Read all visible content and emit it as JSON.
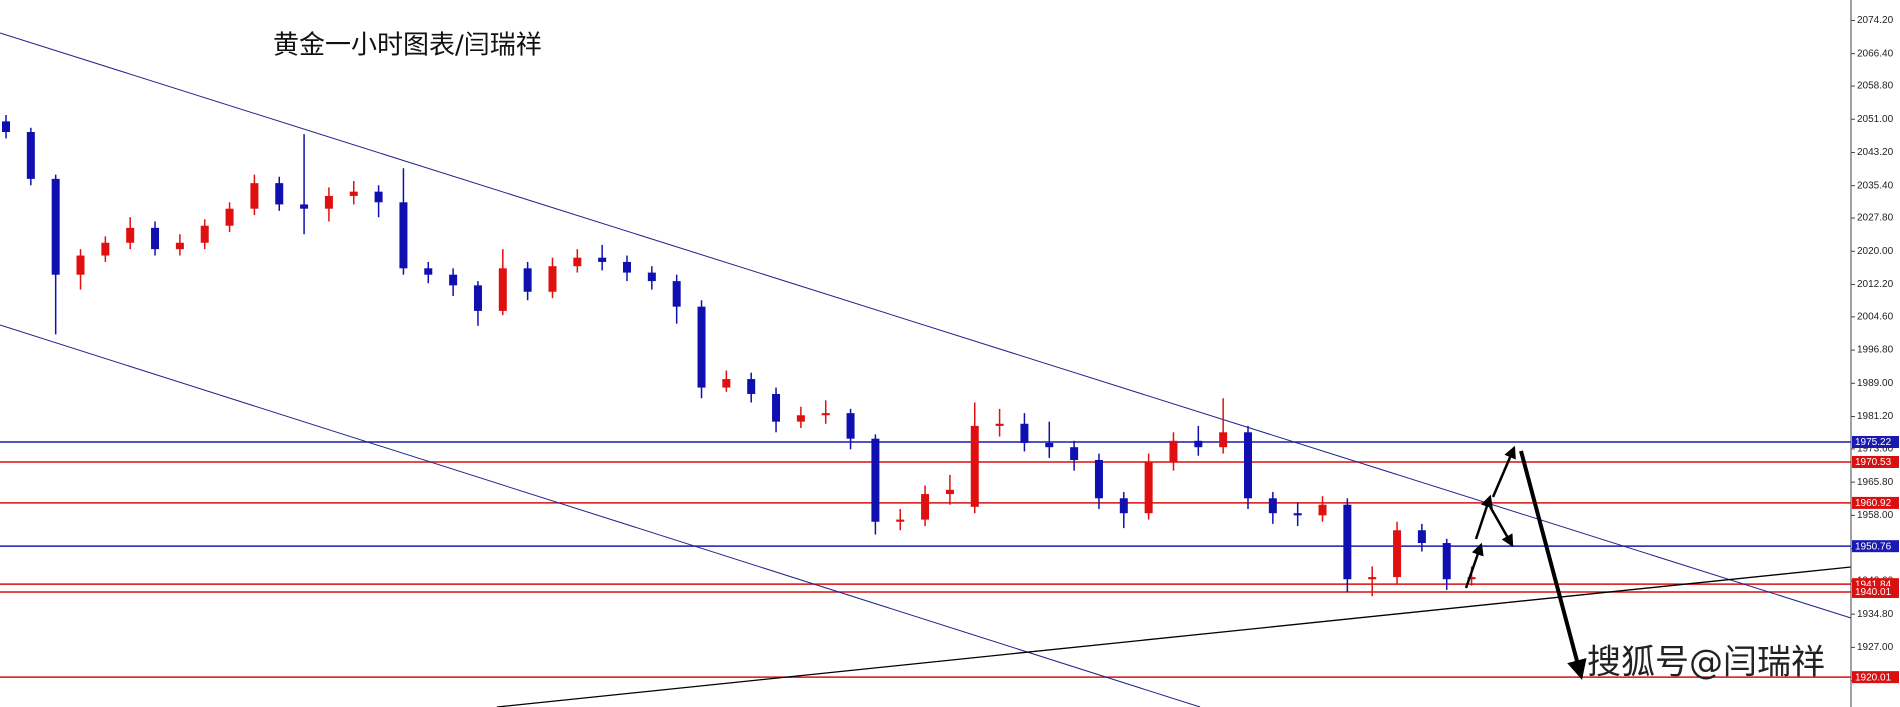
{
  "chart_data": {
    "type": "candlestick",
    "title": "黄金一小时图表/闫瑞祥",
    "watermark": "搜狐号@闫瑞祥",
    "up_color": "#e01010",
    "down_color": "#1010b0",
    "open": [
      2050.5,
      2048.0,
      2037.0,
      2014.5,
      2019.0,
      2022.0,
      2025.5,
      2020.5,
      2022.0,
      2026.0,
      2030.0,
      2036.0,
      2031.0,
      2030.0,
      2033.0,
      2034.0,
      2031.5,
      2016.0,
      2014.5,
      2012.0,
      2006.0,
      2016.0,
      2010.5,
      2016.5,
      2018.5,
      2017.5,
      2015.0,
      2013.0,
      2007.0,
      1988.0,
      1990.0,
      1986.5,
      1980.0,
      1981.5,
      1982.0,
      1976.0,
      1956.5,
      1957.0,
      1963.0,
      1960.0,
      1979.0,
      1979.5,
      1975.0,
      1974.0,
      1971.0,
      1962.0,
      1958.5,
      1970.5,
      1975.5,
      1974.0,
      1977.5,
      1962.0,
      1958.5,
      1958.0,
      1960.5,
      1943.0,
      1943.5,
      1954.5,
      1951.5,
      1943.0
    ],
    "high": [
      2052.0,
      2049.0,
      2038.0,
      2020.5,
      2023.5,
      2028.0,
      2027.0,
      2024.0,
      2027.5,
      2031.5,
      2038.0,
      2037.5,
      2047.5,
      2035.0,
      2036.5,
      2035.5,
      2039.5,
      2017.5,
      2016.0,
      2013.0,
      2020.5,
      2017.5,
      2018.5,
      2020.5,
      2021.5,
      2019.0,
      2016.5,
      2014.5,
      2008.5,
      1992.0,
      1991.5,
      1988.0,
      1983.5,
      1985.0,
      1983.0,
      1977.0,
      1959.5,
      1965.0,
      1967.5,
      1984.5,
      1983.0,
      1982.0,
      1980.0,
      1975.5,
      1972.5,
      1963.5,
      1972.5,
      1977.5,
      1979.0,
      1985.5,
      1979.0,
      1963.5,
      1961.0,
      1962.5,
      1962.0,
      1946.0,
      1956.5,
      1956.0,
      1952.5,
      1946.0
    ],
    "low": [
      2046.5,
      2035.5,
      2000.5,
      2011.0,
      2017.5,
      2020.5,
      2019.0,
      2019.0,
      2020.5,
      2024.5,
      2028.5,
      2029.5,
      2024.0,
      2027.0,
      2031.0,
      2028.0,
      2014.5,
      2012.5,
      2009.5,
      2002.5,
      2005.0,
      2008.5,
      2009.0,
      2015.0,
      2015.5,
      2013.0,
      2011.0,
      2003.0,
      1985.5,
      1987.0,
      1984.5,
      1977.5,
      1978.5,
      1979.5,
      1973.5,
      1953.5,
      1954.5,
      1955.5,
      1960.5,
      1958.5,
      1976.5,
      1973.0,
      1971.5,
      1968.5,
      1959.5,
      1955.0,
      1957.0,
      1968.5,
      1972.0,
      1972.5,
      1959.5,
      1956.0,
      1955.5,
      1956.5,
      1940.0,
      1939.0,
      1942.0,
      1949.5,
      1940.5,
      1941.5
    ],
    "close": [
      2048.0,
      2037.0,
      2014.5,
      2019.0,
      2022.0,
      2025.5,
      2020.5,
      2022.0,
      2026.0,
      2030.0,
      2036.0,
      2031.0,
      2030.0,
      2033.0,
      2034.0,
      2031.5,
      2016.0,
      2014.5,
      2012.0,
      2006.0,
      2016.0,
      2010.5,
      2016.5,
      2018.5,
      2017.5,
      2015.0,
      2013.0,
      2007.0,
      1988.0,
      1990.0,
      1986.5,
      1980.0,
      1981.5,
      1982.0,
      1976.0,
      1956.5,
      1957.0,
      1963.0,
      1964.0,
      1979.0,
      1979.5,
      1975.0,
      1974.0,
      1971.0,
      1962.0,
      1958.5,
      1970.5,
      1975.5,
      1974.0,
      1977.5,
      1962.0,
      1958.5,
      1958.0,
      1960.5,
      1943.0,
      1943.5,
      1954.5,
      1951.5,
      1943.0,
      1943.5
    ],
    "ylim": [
      1913.0,
      2079.0
    ],
    "yticks": [
      {
        "value": 2074.2,
        "label": "2074.20"
      },
      {
        "value": 2066.4,
        "label": "2066.40"
      },
      {
        "value": 2058.8,
        "label": "2058.80"
      },
      {
        "value": 2051.0,
        "label": "2051.00"
      },
      {
        "value": 2043.2,
        "label": "2043.20"
      },
      {
        "value": 2035.4,
        "label": "2035.40"
      },
      {
        "value": 2027.8,
        "label": "2027.80"
      },
      {
        "value": 2020.0,
        "label": "2020.00"
      },
      {
        "value": 2012.2,
        "label": "2012.20"
      },
      {
        "value": 2004.6,
        "label": "2004.60"
      },
      {
        "value": 1996.8,
        "label": "1996.80"
      },
      {
        "value": 1989.0,
        "label": "1989.00"
      },
      {
        "value": 1981.2,
        "label": "1981.20"
      },
      {
        "value": 1973.6,
        "label": "1973.60"
      },
      {
        "value": 1965.8,
        "label": "1965.80"
      },
      {
        "value": 1958.0,
        "label": "1958.00"
      },
      {
        "value": 1950.2,
        "label": "1950.20"
      },
      {
        "value": 1942.6,
        "label": "1942.60"
      },
      {
        "value": 1934.8,
        "label": "1934.80"
      },
      {
        "value": 1927.0,
        "label": "1927.00"
      },
      {
        "value": 1919.2,
        "label": "1919.20"
      }
    ],
    "levels": [
      {
        "value": 1975.22,
        "label": "1975.22",
        "color": "#1a1ab0"
      },
      {
        "value": 1970.53,
        "label": "1970.53",
        "color": "#d81010"
      },
      {
        "value": 1960.92,
        "label": "1960.92",
        "color": "#d81010"
      },
      {
        "value": 1950.76,
        "label": "1950.76",
        "color": "#1a1ab0"
      },
      {
        "value": 1941.84,
        "label": "1941.84",
        "color": "#d81010"
      },
      {
        "value": 1940.01,
        "label": "1940.01",
        "color": "#d81010"
      },
      {
        "value": 1920.01,
        "label": "1920.01",
        "color": "#d81010"
      }
    ]
  }
}
